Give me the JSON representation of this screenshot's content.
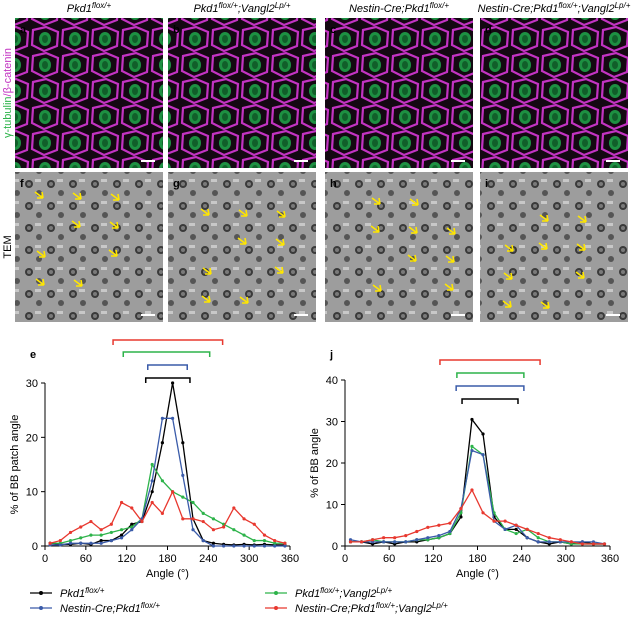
{
  "panels": {
    "columns": [
      [
        "Pkd1",
        "flox/+"
      ],
      [
        "Pkd1",
        "flox/+",
        ";Vangl2",
        "Lp/+"
      ],
      [
        "Nestin-Cre;Pkd1",
        "flox/+"
      ],
      [
        "Nestin-Cre;Pkd1",
        "flox/+",
        ";Vangl2",
        "Lp/+"
      ]
    ],
    "stain_label": [
      "γ-tubulin",
      "/β-catenin"
    ],
    "tem_label": "TEM",
    "letters": [
      "a",
      "b",
      "c",
      "d",
      "f",
      "g",
      "h",
      "i"
    ]
  },
  "chart_data": [
    {
      "type": "line",
      "label": "e",
      "ylabel": "% of BB patch angle",
      "xlabel": "Angle (°)",
      "xlim": [
        0,
        360
      ],
      "ylim": [
        0,
        30
      ],
      "xticks": [
        0,
        60,
        120,
        180,
        240,
        300,
        360
      ],
      "yticks": [
        0,
        10,
        20,
        30
      ],
      "x": [
        7.5,
        22.5,
        37.5,
        52.5,
        67.5,
        82.5,
        97.5,
        112.5,
        127.5,
        142.5,
        157.5,
        172.5,
        187.5,
        202.5,
        217.5,
        232.5,
        247.5,
        262.5,
        277.5,
        292.5,
        307.5,
        322.5,
        337.5,
        352.5
      ],
      "series": [
        {
          "name": [
            "Pkd1",
            "flox/+"
          ],
          "color": "#000000",
          "range": [
            148,
            213
          ],
          "values": [
            0.5,
            0.3,
            0.3,
            0.5,
            0.3,
            1,
            1,
            2,
            4,
            4.5,
            10,
            19,
            30,
            19,
            5,
            1,
            0.5,
            0.3,
            0.2,
            0.3,
            0.2,
            0.3,
            0.2,
            0.2
          ]
        },
        {
          "name": [
            "Pkd1",
            "flox/+",
            ";Vangl2",
            "Lp/+"
          ],
          "color": "#2db34a",
          "range": [
            115,
            242
          ],
          "values": [
            0.5,
            0.5,
            1,
            1.5,
            2,
            2,
            2.5,
            3,
            3.5,
            5,
            15,
            12,
            10,
            9,
            8,
            6,
            5,
            4,
            3,
            2,
            1,
            1,
            0.5,
            0.5
          ]
        },
        {
          "name": [
            "Nestin-Cre;Pkd1",
            "flox/+"
          ],
          "color": "#3a5ba9",
          "range": [
            151,
            209
          ],
          "values": [
            0.2,
            0.2,
            0.5,
            0.5,
            0.5,
            0.5,
            1,
            1.5,
            3,
            5,
            12,
            23.5,
            23.5,
            13,
            3,
            1,
            0,
            0,
            0,
            0,
            0,
            0,
            0,
            0
          ]
        },
        {
          "name": [
            "Nestin-Cre;Pkd1",
            "flox/+",
            ";Vangl2",
            "Lp/+"
          ],
          "color": "#e8382f",
          "range": [
            100,
            261
          ],
          "values": [
            0.5,
            1,
            2.5,
            3.5,
            4.5,
            3,
            4,
            8,
            7,
            4.5,
            8,
            6,
            10,
            5,
            5,
            4.5,
            3,
            3.5,
            7,
            5,
            4,
            2,
            1,
            0.5
          ]
        }
      ]
    },
    {
      "type": "line",
      "label": "j",
      "ylabel": "% of BB angle",
      "xlabel": "Angle (°)",
      "xlim": [
        0,
        360
      ],
      "ylim": [
        0,
        40
      ],
      "xticks": [
        0,
        60,
        120,
        180,
        240,
        300,
        360
      ],
      "yticks": [
        0,
        10,
        20,
        30,
        40
      ],
      "x": [
        7.5,
        22.5,
        37.5,
        52.5,
        67.5,
        82.5,
        97.5,
        112.5,
        127.5,
        142.5,
        157.5,
        172.5,
        187.5,
        202.5,
        217.5,
        232.5,
        247.5,
        262.5,
        277.5,
        292.5,
        307.5,
        322.5,
        337.5,
        352.5
      ],
      "series": [
        {
          "color": "#000000",
          "range": [
            159,
            235
          ],
          "values": [
            1,
            1,
            0.5,
            1,
            0.5,
            1,
            1,
            1.5,
            2,
            3,
            7,
            30.5,
            27,
            7,
            4,
            4,
            2,
            1,
            0.5,
            1,
            0.5,
            1,
            0.5,
            0.5
          ]
        },
        {
          "color": "#2db34a",
          "range": [
            152,
            243
          ],
          "values": [
            1,
            1,
            1.5,
            1,
            1,
            1,
            1.5,
            1.5,
            2,
            3,
            8,
            24,
            22,
            8,
            4,
            3,
            4,
            2,
            1,
            1,
            0.5,
            0.5,
            0.5,
            0.5
          ]
        },
        {
          "color": "#3a5ba9",
          "range": [
            151,
            243
          ],
          "values": [
            1.5,
            1,
            1,
            1,
            1,
            1,
            1.5,
            2,
            2.5,
            3.5,
            9,
            23,
            22,
            6,
            4,
            5,
            2,
            1,
            1,
            1,
            1,
            1,
            1,
            0.5
          ]
        },
        {
          "color": "#e8382f",
          "range": [
            129,
            265
          ],
          "values": [
            1,
            1,
            1.5,
            2,
            2,
            2.5,
            3.5,
            4.5,
            5,
            5.5,
            9,
            13.5,
            8,
            6,
            6,
            5,
            4,
            3,
            2,
            1.5,
            1,
            0.5,
            0.5,
            0.5
          ]
        }
      ]
    }
  ]
}
